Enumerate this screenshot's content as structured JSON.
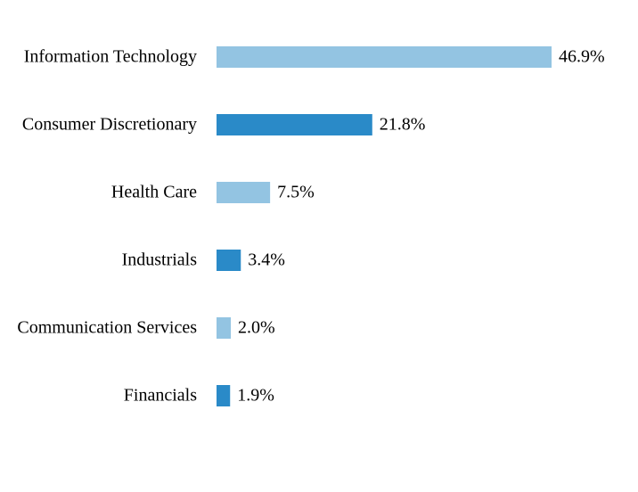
{
  "chart_data": {
    "type": "hbar",
    "categories": [
      "Information Technology",
      "Consumer Discretionary",
      "Health Care",
      "Industrials",
      "Communication Services",
      "Financials"
    ],
    "values": [
      46.9,
      21.8,
      7.5,
      3.4,
      2.0,
      1.9
    ],
    "value_labels": [
      "46.9%",
      "21.8%",
      "7.5%",
      "3.4%",
      "2.0%",
      "1.9%"
    ],
    "colors": [
      "#93c4e2",
      "#2a8ac8",
      "#93c4e2",
      "#2a8ac8",
      "#93c4e2",
      "#2a8ac8"
    ]
  }
}
